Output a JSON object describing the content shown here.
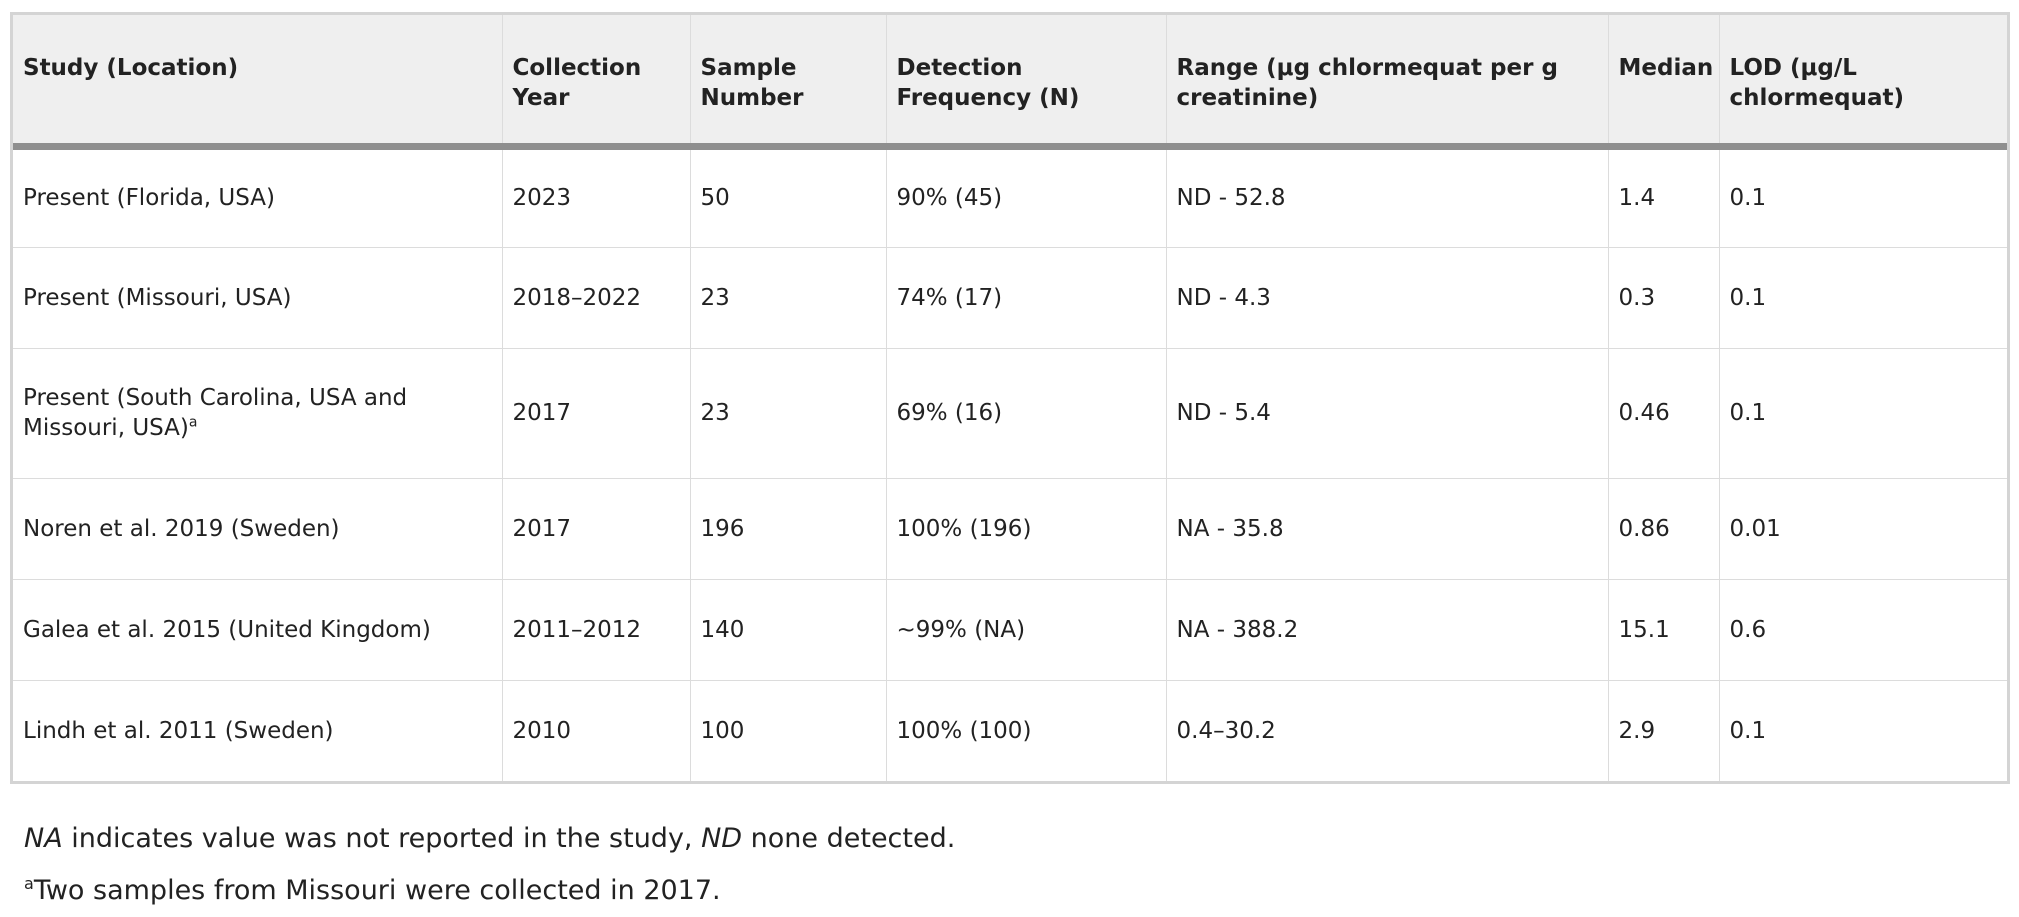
{
  "table": {
    "headers": [
      "Study (Location)",
      "Collection Year",
      "Sample Number",
      "Detection Frequency (N)",
      "Range (μg chlormequat per g creatinine)",
      "Median",
      "LOD (μg/L chlormequat)"
    ],
    "rows": [
      {
        "study": "Present (Florida, USA)",
        "sup": "",
        "year": "2023",
        "samples": "50",
        "detection": "90% (45)",
        "range": "ND - 52.8",
        "median": "1.4",
        "lod": "0.1"
      },
      {
        "study": "Present (Missouri, USA)",
        "sup": "",
        "year": "2018–2022",
        "samples": "23",
        "detection": "74% (17)",
        "range": "ND - 4.3",
        "median": "0.3",
        "lod": "0.1"
      },
      {
        "study": "Present (South Carolina, USA and Missouri, USA)",
        "sup": "a",
        "year": "2017",
        "samples": "23",
        "detection": "69% (16)",
        "range": "ND - 5.4",
        "median": "0.46",
        "lod": "0.1"
      },
      {
        "study": "Noren et al. 2019 (Sweden)",
        "sup": "",
        "year": "2017",
        "samples": "196",
        "detection": "100% (196)",
        "range": "NA - 35.8",
        "median": "0.86",
        "lod": "0.01"
      },
      {
        "study": "Galea et al. 2015 (United Kingdom)",
        "sup": "",
        "year": "2011–2012",
        "samples": "140",
        "detection": "~99% (NA)",
        "range": "NA - 388.2",
        "median": "15.1",
        "lod": "0.6"
      },
      {
        "study": "Lindh et al. 2011 (Sweden)",
        "sup": "",
        "year": "2010",
        "samples": "100",
        "detection": "100% (100)",
        "range": "0.4–30.2",
        "median": "2.9",
        "lod": "0.1"
      }
    ]
  },
  "footnotes": {
    "na_abbr": "NA",
    "na_text": " indicates value was not reported in the study, ",
    "nd_abbr": "ND",
    "nd_text": " none detected.",
    "marker": "a",
    "second": "Two samples from Missouri were collected in 2017."
  }
}
